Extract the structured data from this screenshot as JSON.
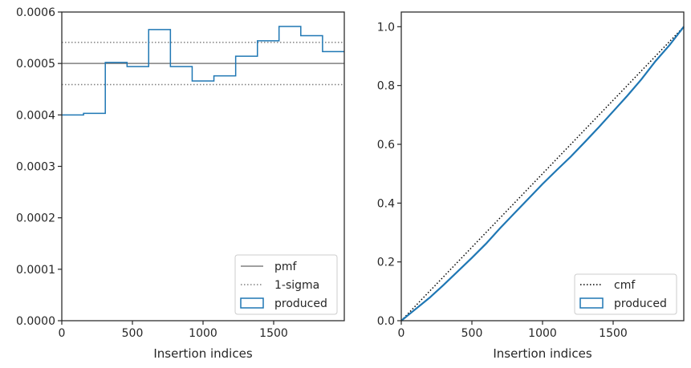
{
  "chart_data": [
    {
      "type": "line",
      "subtype": "histogram-step",
      "xlabel": "Insertion indices",
      "ylabel": "",
      "xlim": [
        0,
        2000
      ],
      "ylim": [
        0,
        0.0006
      ],
      "xticks": [
        0,
        500,
        1000,
        1500
      ],
      "xtick_labels": [
        "0",
        "500",
        "1000",
        "1500"
      ],
      "yticks": [
        0,
        0.0001,
        0.0002,
        0.0003,
        0.0004,
        0.0005,
        0.0006
      ],
      "ytick_labels": [
        "0.0000",
        "0.0001",
        "0.0002",
        "0.0003",
        "0.0004",
        "0.0005",
        "0.0006"
      ],
      "legend_position": "lower-right",
      "lines": [
        {
          "name": "pmf",
          "y": 0.0005,
          "style": "solid",
          "color": "#808080"
        },
        {
          "name": "1-sigma",
          "y": 0.000541,
          "style": "dotted",
          "color": "#808080"
        },
        {
          "name": "1-sigma",
          "y": 0.000459,
          "style": "dotted",
          "color": "#808080",
          "legend": false
        }
      ],
      "series": [
        {
          "name": "produced",
          "color": "#1f77b4",
          "bin_edges": [
            0,
            154,
            308,
            462,
            615,
            769,
            923,
            1077,
            1231,
            1385,
            1538,
            1692,
            1846,
            2000
          ],
          "values": [
            0.0004,
            0.000403,
            0.000502,
            0.000494,
            0.000566,
            0.000494,
            0.000466,
            0.000476,
            0.000514,
            0.000544,
            0.000572,
            0.000554,
            0.000523
          ]
        }
      ]
    },
    {
      "type": "line",
      "xlabel": "Insertion indices",
      "ylabel": "",
      "xlim": [
        0,
        2000
      ],
      "ylim": [
        0,
        1.05
      ],
      "xticks": [
        0,
        500,
        1000,
        1500
      ],
      "xtick_labels": [
        "0",
        "500",
        "1000",
        "1500"
      ],
      "yticks": [
        0,
        0.2,
        0.4,
        0.6,
        0.8,
        1.0
      ],
      "ytick_labels": [
        "0.0",
        "0.2",
        "0.4",
        "0.6",
        "0.8",
        "1.0"
      ],
      "legend_position": "lower-right",
      "series": [
        {
          "name": "cmf",
          "style": "dotted",
          "color": "#000000",
          "x": [
            0,
            2000
          ],
          "y": [
            0,
            1.0
          ]
        },
        {
          "name": "produced",
          "style": "solid",
          "color": "#1f77b4",
          "x": [
            0,
            100,
            200,
            300,
            400,
            500,
            600,
            700,
            800,
            900,
            1000,
            1100,
            1200,
            1300,
            1400,
            1500,
            1600,
            1700,
            1800,
            1900,
            2000
          ],
          "y": [
            0,
            0.039,
            0.078,
            0.122,
            0.168,
            0.214,
            0.262,
            0.315,
            0.365,
            0.415,
            0.465,
            0.512,
            0.558,
            0.608,
            0.659,
            0.712,
            0.765,
            0.821,
            0.883,
            0.938,
            1.0
          ]
        }
      ]
    }
  ]
}
